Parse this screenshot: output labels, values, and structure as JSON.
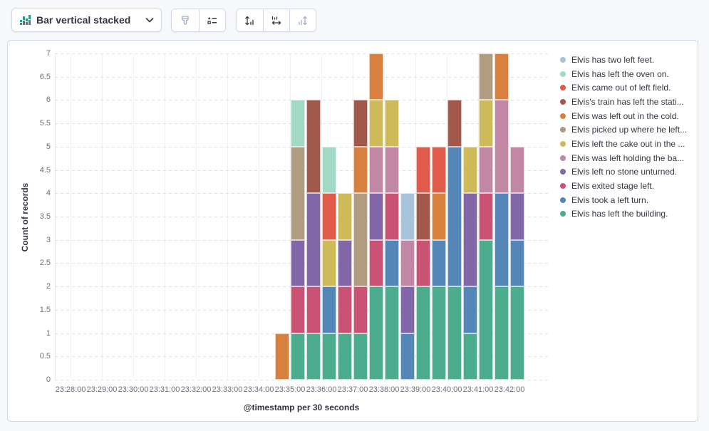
{
  "toolbar": {
    "chart_type_label": "Bar vertical stacked",
    "chart_type_icon": "bar-vertical-stacked-icon",
    "buttons": [
      {
        "name": "visual-options",
        "icon": "brush-icon",
        "enabled": false
      },
      {
        "name": "legend-settings",
        "icon": "legend-list-icon",
        "enabled": true
      },
      {
        "name": "left-axis-settings",
        "icon": "left-axis-icon",
        "enabled": true
      },
      {
        "name": "bottom-axis-settings",
        "icon": "bottom-axis-icon",
        "enabled": true
      },
      {
        "name": "right-axis-settings",
        "icon": "right-axis-icon",
        "enabled": false
      }
    ]
  },
  "chart_data": {
    "type": "bar",
    "stacked": true,
    "orientation": "vertical",
    "xlabel": "@timestamp per 30 seconds",
    "ylabel": "Count of records",
    "ylim": [
      0,
      7
    ],
    "y_tick_step": 0.5,
    "y_ticks": [
      0,
      0.5,
      1,
      1.5,
      2,
      2.5,
      3,
      3.5,
      4,
      4.5,
      5,
      5.5,
      6,
      6.5,
      7
    ],
    "x_axis_ticks": [
      "23:28:00",
      "23:29:00",
      "23:30:00",
      "23:31:00",
      "23:32:00",
      "23:33:00",
      "23:34:00",
      "23:35:00",
      "23:36:00",
      "23:37:00",
      "23:38:00",
      "23:39:00",
      "23:40:00",
      "23:41:00",
      "23:42:00"
    ],
    "grid": {
      "horizontal": "dashed",
      "vertical": "solid"
    },
    "legend_position": "right",
    "x": [
      "23:34:30",
      "23:35:00",
      "23:35:30",
      "23:36:00",
      "23:36:30",
      "23:37:00",
      "23:37:30",
      "23:38:00",
      "23:38:30",
      "23:39:00",
      "23:39:30",
      "23:40:00",
      "23:40:30",
      "23:41:00",
      "23:41:30",
      "23:42:00"
    ],
    "bucket_totals": [
      1,
      6,
      6,
      5,
      4,
      6,
      7,
      6,
      4,
      5,
      5,
      6,
      5,
      7,
      7,
      5
    ],
    "series": [
      {
        "name": "Elvis has left the building.",
        "color": "#4bac8e",
        "values": [
          0,
          1,
          1,
          1,
          1,
          1,
          2,
          2,
          0,
          2,
          2,
          2,
          1,
          3,
          2,
          2
        ]
      },
      {
        "name": "Elvis took a left turn.",
        "color": "#5586b8",
        "values": [
          0,
          0,
          0,
          1,
          0,
          0,
          0,
          1,
          1,
          0,
          1,
          3,
          1,
          0,
          2,
          1
        ]
      },
      {
        "name": "Elvis exited stage left.",
        "color": "#ca5375",
        "values": [
          0,
          1,
          1,
          0,
          1,
          1,
          1,
          1,
          0,
          1,
          0,
          0,
          0,
          1,
          0,
          0
        ]
      },
      {
        "name": "Elvis left no stone unturned.",
        "color": "#8166a8",
        "values": [
          0,
          1,
          2,
          0,
          1,
          0,
          1,
          0,
          1,
          0,
          0,
          0,
          2,
          0,
          0,
          1
        ]
      },
      {
        "name": "Elvis was left holding the ba...",
        "color": "#c287a5",
        "values": [
          0,
          0,
          0,
          0,
          0,
          0,
          1,
          1,
          1,
          0,
          0,
          0,
          0,
          1,
          2,
          1
        ]
      },
      {
        "name": "Elvis left the cake out in the ...",
        "color": "#cfba5a",
        "values": [
          0,
          0,
          0,
          1,
          1,
          0,
          1,
          1,
          0,
          0,
          0,
          0,
          1,
          1,
          0,
          0
        ]
      },
      {
        "name": "Elvis picked up where he left...",
        "color": "#b09c80",
        "values": [
          0,
          2,
          0,
          0,
          0,
          2,
          0,
          0,
          0,
          0,
          0,
          0,
          0,
          1,
          0,
          0
        ]
      },
      {
        "name": "Elvis was left out in the cold.",
        "color": "#d8813f",
        "values": [
          1,
          0,
          0,
          0,
          0,
          1,
          1,
          0,
          0,
          0,
          1,
          0,
          0,
          0,
          1,
          0
        ]
      },
      {
        "name": "Elvis's train has left the stati...",
        "color": "#a2584a",
        "values": [
          0,
          0,
          2,
          0,
          0,
          1,
          0,
          0,
          0,
          1,
          0,
          1,
          0,
          0,
          0,
          0
        ]
      },
      {
        "name": "Elvis came out of left field.",
        "color": "#e05b49",
        "values": [
          0,
          0,
          0,
          1,
          0,
          0,
          0,
          0,
          0,
          1,
          1,
          0,
          0,
          0,
          0,
          0
        ]
      },
      {
        "name": "Elvis has left the oven on.",
        "color": "#a2d9c4",
        "values": [
          0,
          1,
          0,
          1,
          0,
          0,
          0,
          0,
          0,
          0,
          0,
          0,
          0,
          0,
          0,
          0
        ]
      },
      {
        "name": "Elvis has two left feet.",
        "color": "#a8c3dc",
        "values": [
          0,
          0,
          0,
          0,
          0,
          0,
          0,
          0,
          1,
          0,
          0,
          0,
          0,
          0,
          0,
          0
        ]
      }
    ]
  },
  "legend": {
    "items": [
      {
        "label": "Elvis has two left feet.",
        "color": "#a8c3dc"
      },
      {
        "label": "Elvis has left the oven on.",
        "color": "#a2d9c4"
      },
      {
        "label": "Elvis came out of left field.",
        "color": "#e05b49"
      },
      {
        "label": "Elvis's train has left the stati...",
        "color": "#a2584a"
      },
      {
        "label": "Elvis was left out in the cold.",
        "color": "#d8813f"
      },
      {
        "label": "Elvis picked up where he left...",
        "color": "#b09c80"
      },
      {
        "label": "Elvis left the cake out in the ...",
        "color": "#cfba5a"
      },
      {
        "label": "Elvis was left holding the ba...",
        "color": "#c287a5"
      },
      {
        "label": "Elvis left no stone unturned.",
        "color": "#8166a8"
      },
      {
        "label": "Elvis exited stage left.",
        "color": "#ca5375"
      },
      {
        "label": "Elvis took a left turn.",
        "color": "#5586b8"
      },
      {
        "label": "Elvis has left the building.",
        "color": "#4bac8e"
      }
    ]
  },
  "colors": {
    "page_bg": "#f7f8fb",
    "panel_border": "#d0d7e2",
    "icon_enabled": "#343741",
    "icon_disabled": "#a4aebf",
    "tick_text": "#69707d",
    "axis_title_text": "#343741",
    "icon_green": "#1e9f8a",
    "icon_gray": "#69707d"
  }
}
